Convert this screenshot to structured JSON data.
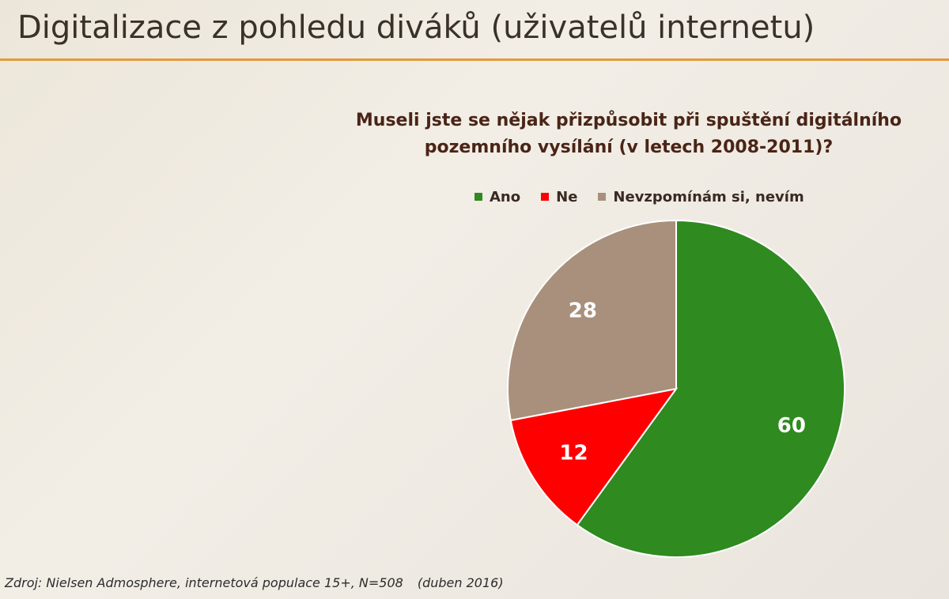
{
  "slide": {
    "title": "Digitalizace z pohledu diváků (uživatelů internetu)",
    "source": "Zdroj: Nielsen Admosphere, internetová populace 15+, N=508",
    "source_date": "(duben 2016)"
  },
  "chart_data": {
    "type": "pie",
    "title_lines": [
      "Museli jste se nějak přizpůsobit při spuštění digitálního",
      "pozemního vysílání (v letech 2008-2011)?"
    ],
    "categories": [
      "Ano",
      "Ne",
      "Nevzpomínám si, nevím"
    ],
    "values": [
      60,
      12,
      28
    ],
    "data_labels": [
      "60",
      "12",
      "28"
    ],
    "colors": [
      "#2f8a1f",
      "#ff0000",
      "#a8907c"
    ],
    "legend_position": "top",
    "start_angle_deg": 0,
    "direction": "clockwise"
  }
}
